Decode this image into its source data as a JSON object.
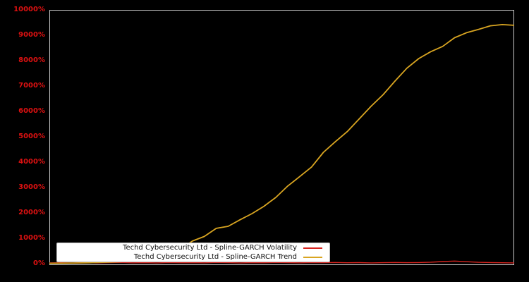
{
  "chart_data": {
    "type": "line",
    "title": "",
    "xlabel": "",
    "ylabel": "",
    "ylim": [
      0,
      10000
    ],
    "grid": false,
    "background_color": "#000000",
    "axis_color": "#c8c8c8",
    "tick_label_color": "#dd1111",
    "x_axis": {
      "tick_labels_visible": false
    },
    "ytick_values": [
      0,
      1000,
      2000,
      3000,
      4000,
      5000,
      6000,
      7000,
      8000,
      9000,
      10000
    ],
    "ytick_labels": [
      "0%",
      "1000%",
      "2000%",
      "3000%",
      "4000%",
      "5000%",
      "6000%",
      "7000%",
      "8000%",
      "9000%",
      "10000%"
    ],
    "legend_position": "lower left",
    "series": [
      {
        "name": "Techd Cybersecurity Ltd - Spline-GARCH Volatility",
        "color": "#d8241f",
        "values": [
          15,
          22,
          12,
          28,
          18,
          25,
          32,
          20,
          26,
          18,
          30,
          22,
          28,
          20,
          34,
          24,
          18,
          28,
          22,
          32,
          26,
          20,
          30,
          24,
          34,
          22,
          28,
          18,
          26,
          32,
          24,
          30,
          45,
          70,
          90,
          65,
          40,
          30,
          22,
          18
        ]
      },
      {
        "name": "Techd Cybersecurity Ltd - Spline-GARCH Trend",
        "color": "#d9a521",
        "values": [
          0,
          4,
          10,
          18,
          30,
          45,
          65,
          95,
          130,
          180,
          300,
          560,
          880,
          1060,
          1380,
          1460,
          1720,
          1960,
          2250,
          2600,
          3050,
          3420,
          3800,
          4380,
          4800,
          5200,
          5700,
          6200,
          6650,
          7190,
          7700,
          8080,
          8350,
          8560,
          8900,
          9100,
          9230,
          9370,
          9420,
          9390
        ]
      }
    ]
  }
}
